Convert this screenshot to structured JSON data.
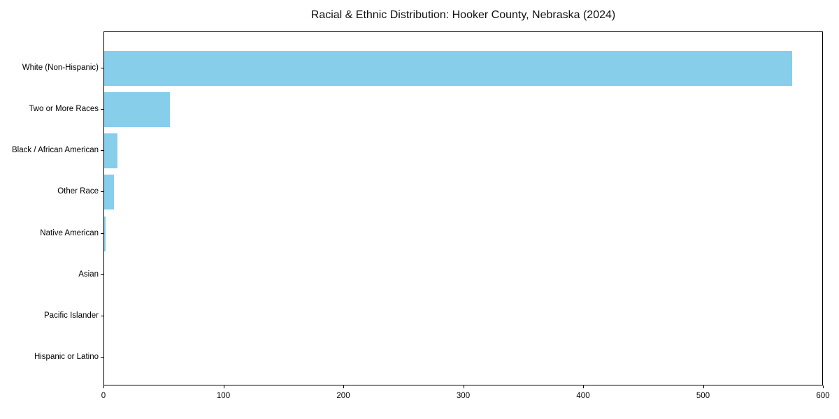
{
  "chart_data": {
    "type": "bar",
    "orientation": "horizontal",
    "title": "Racial & Ethnic Distribution: Hooker County, Nebraska (2024)",
    "categories": [
      "White (Non-Hispanic)",
      "Two or More Races",
      "Black / African American",
      "Other Race",
      "Native American",
      "Asian",
      "Pacific Islander",
      "Hispanic or Latino"
    ],
    "values": [
      574,
      55,
      11,
      8,
      1,
      0,
      0,
      0
    ],
    "xlabel": "",
    "ylabel": "",
    "xlim": [
      0,
      600
    ],
    "xticks": [
      0,
      100,
      200,
      300,
      400,
      500,
      600
    ],
    "bar_color": "#87CEEB",
    "background_color": "#ffffff",
    "frame": true,
    "grid": false,
    "legend": null
  }
}
